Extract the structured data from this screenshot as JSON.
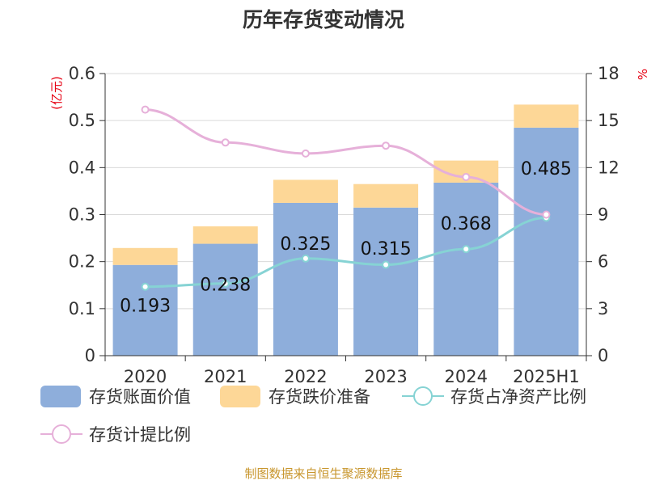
{
  "chart_data": {
    "type": "bar",
    "title": "历年存货变动情况",
    "categories": [
      "2020",
      "2021",
      "2022",
      "2023",
      "2024",
      "2025H1"
    ],
    "y_left": {
      "unit": "(亿元)",
      "ylim": [
        0,
        0.6
      ],
      "ticks": [
        "0",
        "0.1",
        "0.2",
        "0.3",
        "0.4",
        "0.5",
        "0.6"
      ]
    },
    "y_right": {
      "unit": "%",
      "ylim": [
        0,
        18
      ],
      "ticks": [
        "0",
        "3",
        "6",
        "9",
        "12",
        "15",
        "18"
      ]
    },
    "bar_series": [
      {
        "name": "存货账面价值",
        "color": "#8eaedb",
        "values": [
          0.193,
          0.238,
          0.325,
          0.315,
          0.368,
          0.485
        ]
      },
      {
        "name": "存货跌价准备",
        "color": "#fdd797",
        "values": [
          0.036,
          0.037,
          0.049,
          0.05,
          0.047,
          0.049
        ]
      }
    ],
    "data_labels": [
      "0.193",
      "0.238",
      "0.325",
      "0.315",
      "0.368",
      "0.485"
    ],
    "line_series": [
      {
        "name": "存货占净资产比例",
        "color": "#86d3d4",
        "axis": "right",
        "values": [
          4.4,
          4.6,
          6.2,
          5.8,
          6.8,
          8.8
        ]
      },
      {
        "name": "存货计提比例",
        "color": "#e6b0d9",
        "axis": "right",
        "values": [
          15.7,
          13.6,
          12.9,
          13.4,
          11.4,
          9.0
        ]
      }
    ],
    "legend": {
      "position": "bottom"
    },
    "grid": true
  },
  "source": "制图数据来自恒生聚源数据库"
}
